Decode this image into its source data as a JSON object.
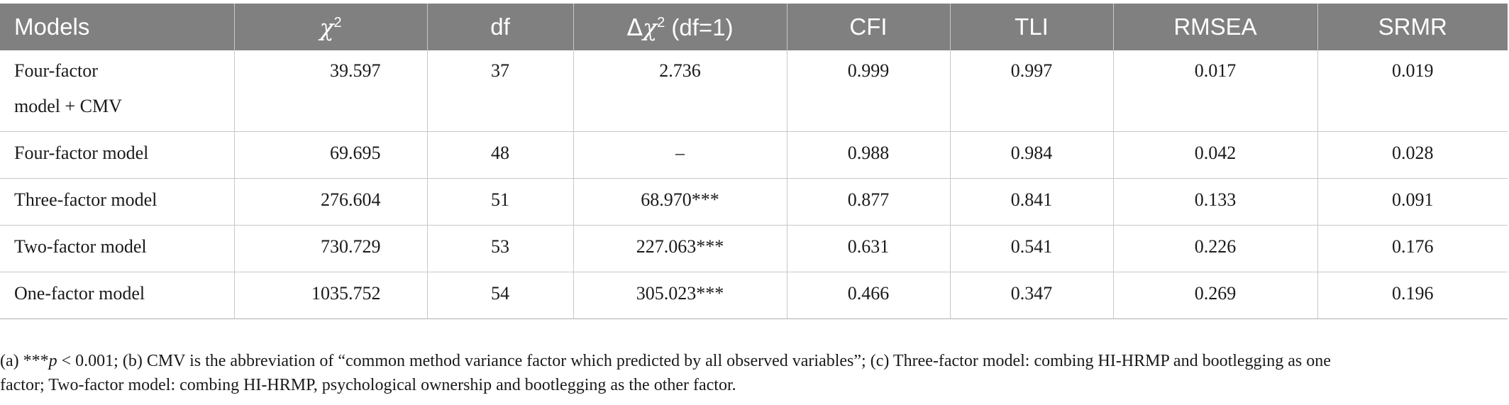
{
  "table": {
    "headers": {
      "models": "Models",
      "chi_symbol": "χ",
      "chi_sup": "2",
      "df": "df",
      "delta_symbol": "Δ",
      "delta_chi": "χ",
      "delta_sup": "2",
      "delta_suffix": " (df=1)",
      "cfi": "CFI",
      "tli": "TLI",
      "rmsea": "RMSEA",
      "srmr": "SRMR"
    },
    "rows": [
      {
        "model_line1": "Four-factor",
        "model_line2": "model + CMV",
        "chi2": "39.597",
        "df": "37",
        "delta_chi2": "2.736",
        "cfi": "0.999",
        "tli": "0.997",
        "rmsea": "0.017",
        "srmr": "0.019"
      },
      {
        "model_line1": "Four-factor model",
        "chi2": "69.695",
        "df": "48",
        "delta_chi2": "–",
        "cfi": "0.988",
        "tli": "0.984",
        "rmsea": "0.042",
        "srmr": "0.028"
      },
      {
        "model_line1": "Three-factor model",
        "chi2": "276.604",
        "df": "51",
        "delta_chi2": "68.970***",
        "cfi": "0.877",
        "tli": "0.841",
        "rmsea": "0.133",
        "srmr": "0.091"
      },
      {
        "model_line1": "Two-factor model",
        "chi2": "730.729",
        "df": "53",
        "delta_chi2": "227.063***",
        "cfi": "0.631",
        "tli": "0.541",
        "rmsea": "0.226",
        "srmr": "0.176"
      },
      {
        "model_line1": "One-factor model",
        "chi2": "1035.752",
        "df": "54",
        "delta_chi2": "305.023***",
        "cfi": "0.466",
        "tli": "0.347",
        "rmsea": "0.269",
        "srmr": "0.196"
      }
    ]
  },
  "note": {
    "prefix": "(a) ***",
    "p_symbol": "p",
    "line1_rest": " < 0.001; (b) CMV is the abbreviation of “common method variance factor which predicted by all observed variables”; (c) Three-factor model: combing HI-HRMP and bootlegging as one",
    "line2": "factor; Two-factor model: combing HI-HRMP, psychological ownership and bootlegging as the other factor."
  },
  "colors": {
    "header_bg": "#808080",
    "header_text": "#ffffff",
    "grid": "#c8c8c8",
    "body_text": "#1a1a1a"
  }
}
